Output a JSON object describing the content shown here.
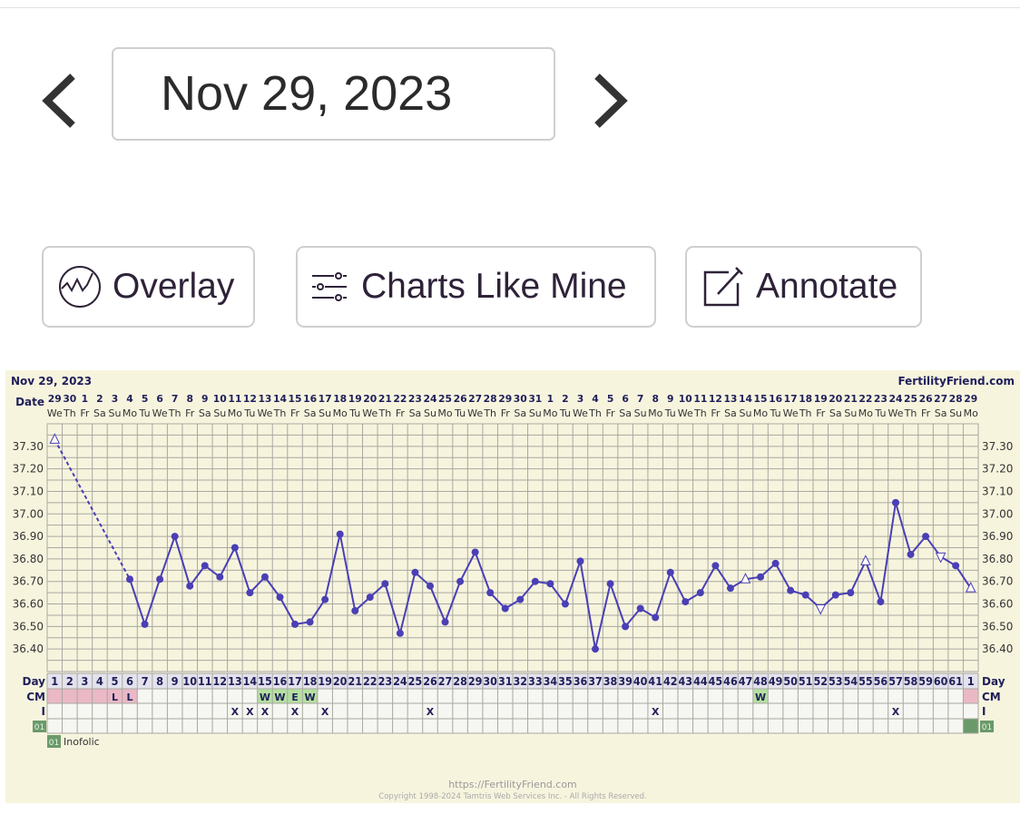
{
  "nav": {
    "current_date": "Nov 29, 2023",
    "prev_icon": "chevron-left-icon",
    "next_icon": "chevron-right-icon"
  },
  "buttons": {
    "overlay": "Overlay",
    "charts_like_mine": "Charts Like Mine",
    "annotate": "Annotate"
  },
  "chart_header": {
    "date": "Nov 29, 2023",
    "brand": "FertilityFriend.com",
    "date_row_label": "Date"
  },
  "row_labels": {
    "day": "Day",
    "cm": "CM",
    "intercourse": "I",
    "supplement": "01"
  },
  "legend": {
    "code": "01",
    "name": "Inofolic"
  },
  "footer": {
    "url": "https://FertilityFriend.com",
    "copyright": "Copyright 1998-2024 Tamtris Web Services Inc. - All Rights Reserved."
  },
  "colors": {
    "line": "#4a3fb5",
    "background": "#f7f4de",
    "grid": "#a8a8a0",
    "period": "#eab8c6",
    "cm_fertile": "#b5e0a0",
    "supplement": "#6a9a6a"
  },
  "chart_data": {
    "type": "line",
    "ylim": [
      36.3,
      37.4
    ],
    "y_ticks": [
      "37.30",
      "37.20",
      "37.10",
      "37.00",
      "36.90",
      "36.80",
      "36.70",
      "36.60",
      "36.50",
      "36.40"
    ],
    "dates": [
      "29",
      "30",
      "1",
      "2",
      "3",
      "4",
      "5",
      "6",
      "7",
      "8",
      "9",
      "10",
      "11",
      "12",
      "13",
      "14",
      "15",
      "16",
      "17",
      "18",
      "19",
      "20",
      "21",
      "22",
      "23",
      "24",
      "25",
      "26",
      "27",
      "28",
      "29",
      "30",
      "31",
      "1",
      "2",
      "3",
      "4",
      "5",
      "6",
      "7",
      "8",
      "9",
      "10",
      "11",
      "12",
      "13",
      "14",
      "15",
      "16",
      "17",
      "18",
      "19",
      "20",
      "21",
      "22",
      "23",
      "24",
      "25",
      "26",
      "27",
      "28",
      "29"
    ],
    "weekdays": [
      "We",
      "Th",
      "Fr",
      "Sa",
      "Su",
      "Mo",
      "Tu",
      "We",
      "Th",
      "Fr",
      "Sa",
      "Su",
      "Mo",
      "Tu",
      "We",
      "Th",
      "Fr",
      "Sa",
      "Su",
      "Mo",
      "Tu",
      "We",
      "Th",
      "Fr",
      "Sa",
      "Su",
      "Mo",
      "Tu",
      "We",
      "Th",
      "Fr",
      "Sa",
      "Su",
      "Mo",
      "Tu",
      "We",
      "Th",
      "Fr",
      "Sa",
      "Su",
      "Mo",
      "Tu",
      "We",
      "Th",
      "Fr",
      "Sa",
      "Su",
      "Mo",
      "Tu",
      "We",
      "Th",
      "Fr",
      "Sa",
      "Su",
      "Mo",
      "Tu",
      "We",
      "Th",
      "Fr",
      "Sa",
      "Su",
      "Mo"
    ],
    "cycle_days": [
      "1",
      "2",
      "3",
      "4",
      "5",
      "6",
      "7",
      "8",
      "9",
      "10",
      "11",
      "12",
      "13",
      "14",
      "15",
      "16",
      "17",
      "18",
      "19",
      "20",
      "21",
      "22",
      "23",
      "24",
      "25",
      "26",
      "27",
      "28",
      "29",
      "30",
      "31",
      "32",
      "33",
      "34",
      "35",
      "36",
      "37",
      "38",
      "39",
      "40",
      "41",
      "42",
      "43",
      "44",
      "45",
      "46",
      "47",
      "48",
      "49",
      "50",
      "51",
      "52",
      "53",
      "54",
      "55",
      "56",
      "57",
      "58",
      "59",
      "60",
      "61",
      "1"
    ],
    "temperatures": [
      37.33,
      null,
      null,
      null,
      null,
      36.71,
      36.51,
      36.71,
      36.9,
      36.68,
      36.77,
      36.72,
      36.85,
      36.65,
      36.72,
      36.63,
      36.51,
      36.52,
      36.62,
      36.91,
      36.57,
      36.63,
      36.69,
      36.47,
      36.74,
      36.68,
      36.52,
      36.7,
      36.83,
      36.65,
      36.58,
      36.62,
      36.7,
      36.69,
      36.6,
      36.79,
      36.4,
      36.69,
      36.5,
      36.58,
      36.54,
      36.74,
      36.61,
      36.65,
      36.77,
      36.67,
      36.71,
      36.72,
      36.78,
      36.66,
      36.64,
      36.58,
      36.64,
      36.65,
      36.79,
      36.61,
      37.05,
      36.82,
      36.9,
      36.81,
      36.77,
      36.67
    ],
    "markers": [
      "triangle-up",
      "",
      "",
      "",
      "",
      "dot",
      "dot",
      "dot",
      "dot",
      "dot",
      "dot",
      "dot",
      "dot",
      "dot",
      "dot",
      "dot",
      "dot",
      "dot",
      "dot",
      "dot",
      "dot",
      "dot",
      "dot",
      "dot",
      "dot",
      "dot",
      "dot",
      "dot",
      "dot",
      "dot",
      "dot",
      "dot",
      "dot",
      "dot",
      "dot",
      "dot",
      "dot",
      "dot",
      "dot",
      "dot",
      "dot",
      "dot",
      "dot",
      "dot",
      "dot",
      "dot",
      "triangle-up",
      "dot",
      "dot",
      "dot",
      "dot",
      "triangle-down",
      "dot",
      "dot",
      "triangle-up",
      "dot",
      "dot",
      "dot",
      "dot",
      "triangle-down",
      "dot",
      "triangle-up"
    ],
    "cm": [
      "",
      "",
      "",
      "",
      "L",
      "L",
      "",
      "",
      "",
      "",
      "",
      "",
      "",
      "",
      "W",
      "W",
      "E",
      "W",
      "",
      "",
      "",
      "",
      "",
      "",
      "",
      "",
      "",
      "",
      "",
      "",
      "",
      "",
      "",
      "",
      "",
      "",
      "",
      "",
      "",
      "",
      "",
      "",
      "",
      "",
      "",
      "",
      "",
      "W",
      "",
      "",
      "",
      "",
      "",
      "",
      "",
      "",
      "",
      "",
      "",
      "",
      "",
      ""
    ],
    "cm_colors": [
      "p",
      "p",
      "p",
      "p",
      "p",
      "p",
      "",
      "",
      "",
      "",
      "",
      "",
      "",
      "",
      "g",
      "g",
      "g",
      "g",
      "",
      "",
      "",
      "",
      "",
      "",
      "",
      "",
      "",
      "",
      "",
      "",
      "",
      "",
      "",
      "",
      "",
      "",
      "",
      "",
      "",
      "",
      "",
      "",
      "",
      "",
      "",
      "",
      "",
      "g",
      "",
      "",
      "",
      "",
      "",
      "",
      "",
      "",
      "",
      "",
      "",
      "",
      "",
      "p"
    ],
    "intercourse": [
      "",
      "",
      "",
      "",
      "",
      "",
      "",
      "",
      "",
      "",
      "",
      "",
      "X",
      "X",
      "X",
      "",
      "X",
      "",
      "X",
      "",
      "",
      "",
      "",
      "",
      "",
      "X",
      "",
      "",
      "",
      "",
      "",
      "",
      "",
      "",
      "",
      "",
      "",
      "",
      "",
      "",
      "X",
      "",
      "",
      "",
      "",
      "",
      "",
      "",
      "",
      "",
      "",
      "",
      "",
      "",
      "",
      "",
      "X",
      "",
      "",
      "",
      "",
      ""
    ],
    "supplement": [
      false,
      false,
      false,
      false,
      false,
      false,
      false,
      false,
      false,
      false,
      false,
      false,
      false,
      false,
      false,
      false,
      false,
      false,
      false,
      false,
      false,
      false,
      false,
      false,
      false,
      false,
      false,
      false,
      false,
      false,
      false,
      false,
      false,
      false,
      false,
      false,
      false,
      false,
      false,
      false,
      false,
      false,
      false,
      false,
      false,
      false,
      false,
      false,
      false,
      false,
      false,
      false,
      false,
      false,
      false,
      false,
      false,
      false,
      false,
      false,
      false,
      true
    ]
  }
}
